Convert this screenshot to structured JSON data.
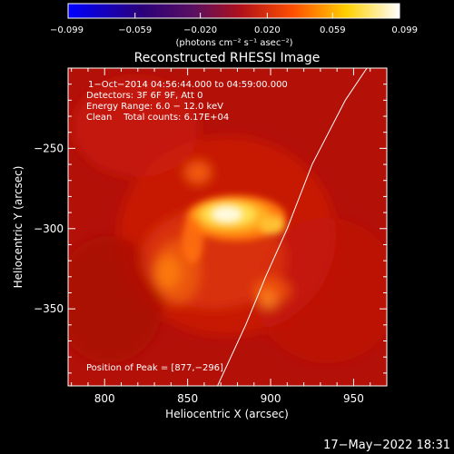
{
  "chart_data": {
    "type": "heatmap",
    "title": "Reconstructed RHESSI Image",
    "xlabel": "Heliocentric X (arcsec)",
    "ylabel": "Heliocentric Y (arcsec)",
    "xlim": [
      778,
      970
    ],
    "ylim": [
      -398,
      -200
    ],
    "x_ticks": [
      800,
      850,
      900,
      950
    ],
    "y_ticks": [
      -250,
      -300,
      -350
    ],
    "x_tick_labels": [
      "800",
      "850",
      "900",
      "950"
    ],
    "y_tick_labels": [
      "−250",
      "−300",
      "−350"
    ],
    "colorbar": {
      "ticks": [
        -0.099,
        -0.059,
        -0.02,
        0.02,
        0.059,
        0.099
      ],
      "tick_labels": [
        "−0.099",
        "−0.059",
        "−0.020",
        "0.020",
        "0.059",
        "0.099"
      ],
      "unit_label": "(photons cm⁻² s⁻¹ asec⁻²)",
      "colormap": "blue-purple-red-yellow-white",
      "range": [
        -0.099,
        0.099
      ]
    },
    "annotations": {
      "time_range": "1−Oct−2014 04:56:44.000 to 04:59:00.000",
      "detectors": "Detectors: 3F 6F 9F, Att 0",
      "energy_range": "Energy Range: 6.0 − 12.0 keV",
      "clean_counts": "Clean    Total counts: 6.17E+04",
      "peak_position": "Position of Peak = [877,−296]"
    },
    "peak": {
      "x": 877,
      "y": -296
    },
    "limb_curve": [
      [
        868,
        -398
      ],
      [
        885,
        -360
      ],
      [
        897,
        -330
      ],
      [
        910,
        -300
      ],
      [
        925,
        -260
      ],
      [
        945,
        -220
      ],
      [
        958,
        -200
      ]
    ]
  },
  "footer": {
    "timestamp": "17−May−2022 18:31"
  }
}
